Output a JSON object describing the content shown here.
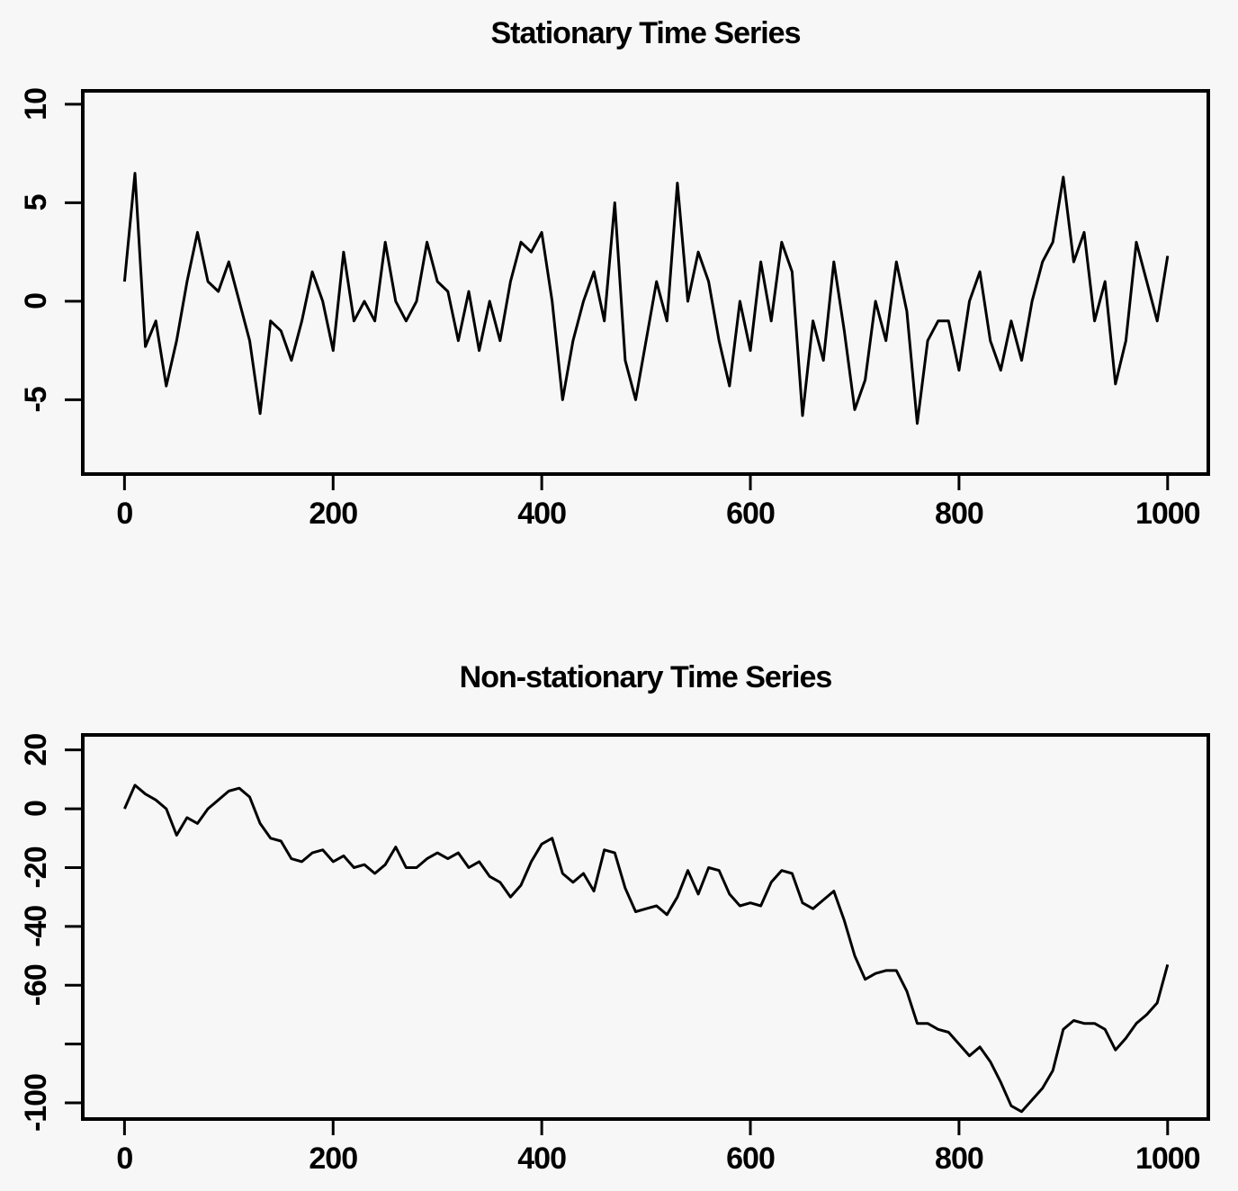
{
  "chart_data": [
    {
      "type": "line",
      "title": "Stationary Time Series",
      "color": "#000000",
      "x": [
        0,
        10,
        20,
        30,
        40,
        50,
        60,
        70,
        80,
        90,
        100,
        110,
        120,
        130,
        140,
        150,
        160,
        170,
        180,
        190,
        200,
        210,
        220,
        230,
        240,
        250,
        260,
        270,
        280,
        290,
        300,
        310,
        320,
        330,
        340,
        350,
        360,
        370,
        380,
        390,
        400,
        410,
        420,
        430,
        440,
        450,
        460,
        470,
        480,
        490,
        500,
        510,
        520,
        530,
        540,
        550,
        560,
        570,
        580,
        590,
        600,
        610,
        620,
        630,
        640,
        650,
        660,
        670,
        680,
        690,
        700,
        710,
        720,
        730,
        740,
        750,
        760,
        770,
        780,
        790,
        800,
        810,
        820,
        830,
        840,
        850,
        860,
        870,
        880,
        890,
        900,
        910,
        920,
        930,
        940,
        950,
        960,
        970,
        980,
        990,
        1000
      ],
      "values": [
        1,
        6.5,
        -2.3,
        -1,
        -4.3,
        -2,
        1,
        3.5,
        1,
        0.5,
        2,
        0,
        -2,
        -5.7,
        -1,
        -1.5,
        -3,
        -1,
        1.5,
        0,
        -2.5,
        2.5,
        -1,
        0,
        -1,
        3,
        0,
        -1,
        0,
        3,
        1,
        0.5,
        -2,
        0.5,
        -2.5,
        0,
        -2,
        1,
        3,
        2.5,
        3.5,
        0,
        -5,
        -2,
        0,
        1.5,
        -1,
        5,
        -3,
        -5,
        -2,
        1,
        -1,
        6,
        0,
        2.5,
        1,
        -2,
        -4.3,
        0,
        -2.5,
        2,
        -1,
        3,
        1.5,
        -5.8,
        -1,
        -3,
        2,
        -1.5,
        -5.5,
        -4,
        0,
        -2,
        2,
        -0.5,
        -6.2,
        -2,
        -1,
        -1,
        -3.5,
        0,
        1.5,
        -2,
        -3.5,
        -1,
        -3,
        0,
        2,
        3,
        6.3,
        2,
        3.5,
        -1,
        1,
        -4.2,
        -2,
        3,
        1,
        -1,
        2.3
      ],
      "xlim": [
        -40,
        1039
      ],
      "xticks": [
        0,
        200,
        400,
        600,
        800,
        1000
      ],
      "ylim": [
        -8.77,
        10.68
      ],
      "yticks": [
        -5,
        0,
        5,
        10
      ]
    },
    {
      "type": "line",
      "title": "Non-stationary Time Series",
      "color": "#000000",
      "x": [
        0,
        10,
        20,
        30,
        40,
        50,
        60,
        70,
        80,
        90,
        100,
        110,
        120,
        130,
        140,
        150,
        160,
        170,
        180,
        190,
        200,
        210,
        220,
        230,
        240,
        250,
        260,
        270,
        280,
        290,
        300,
        310,
        320,
        330,
        340,
        350,
        360,
        370,
        380,
        390,
        400,
        410,
        420,
        430,
        440,
        450,
        460,
        470,
        480,
        490,
        500,
        510,
        520,
        530,
        540,
        550,
        560,
        570,
        580,
        590,
        600,
        610,
        620,
        630,
        640,
        650,
        660,
        670,
        680,
        690,
        700,
        710,
        720,
        730,
        740,
        750,
        760,
        770,
        780,
        790,
        800,
        810,
        820,
        830,
        840,
        850,
        860,
        870,
        880,
        890,
        900,
        910,
        920,
        930,
        940,
        950,
        960,
        970,
        980,
        990,
        1000
      ],
      "values": [
        0,
        8,
        5,
        3,
        0,
        -9,
        -3,
        -5,
        0,
        3,
        6,
        7,
        4,
        -5,
        -10,
        -11,
        -17,
        -18,
        -15,
        -14,
        -18,
        -16,
        -20,
        -19,
        -22,
        -19,
        -13,
        -20,
        -20,
        -17,
        -15,
        -17,
        -15,
        -20,
        -18,
        -23,
        -25,
        -30,
        -26,
        -18,
        -12,
        -10,
        -22,
        -25,
        -22,
        -28,
        -14,
        -15,
        -27,
        -35,
        -34,
        -33,
        -36,
        -30,
        -21,
        -29,
        -20,
        -21,
        -29,
        -33,
        -32,
        -33,
        -25,
        -21,
        -22,
        -32,
        -34,
        -31,
        -28,
        -38,
        -50,
        -58,
        -56,
        -55,
        -55,
        -62,
        -73,
        -73,
        -75,
        -76,
        -80,
        -84,
        -81,
        -86,
        -93,
        -101,
        -103,
        -99,
        -95,
        -89,
        -75,
        -72,
        -73,
        -73,
        -75,
        -82,
        -78,
        -73,
        -70,
        -66,
        -53
      ],
      "xlim": [
        -40,
        1039
      ],
      "xticks": [
        0,
        200,
        400,
        600,
        800,
        1000
      ],
      "ylim": [
        -105.5,
        25.1
      ],
      "yticks": [
        -100,
        {
          "value": -80,
          "label": null
        },
        -60,
        -40,
        -20,
        0,
        20
      ]
    }
  ]
}
